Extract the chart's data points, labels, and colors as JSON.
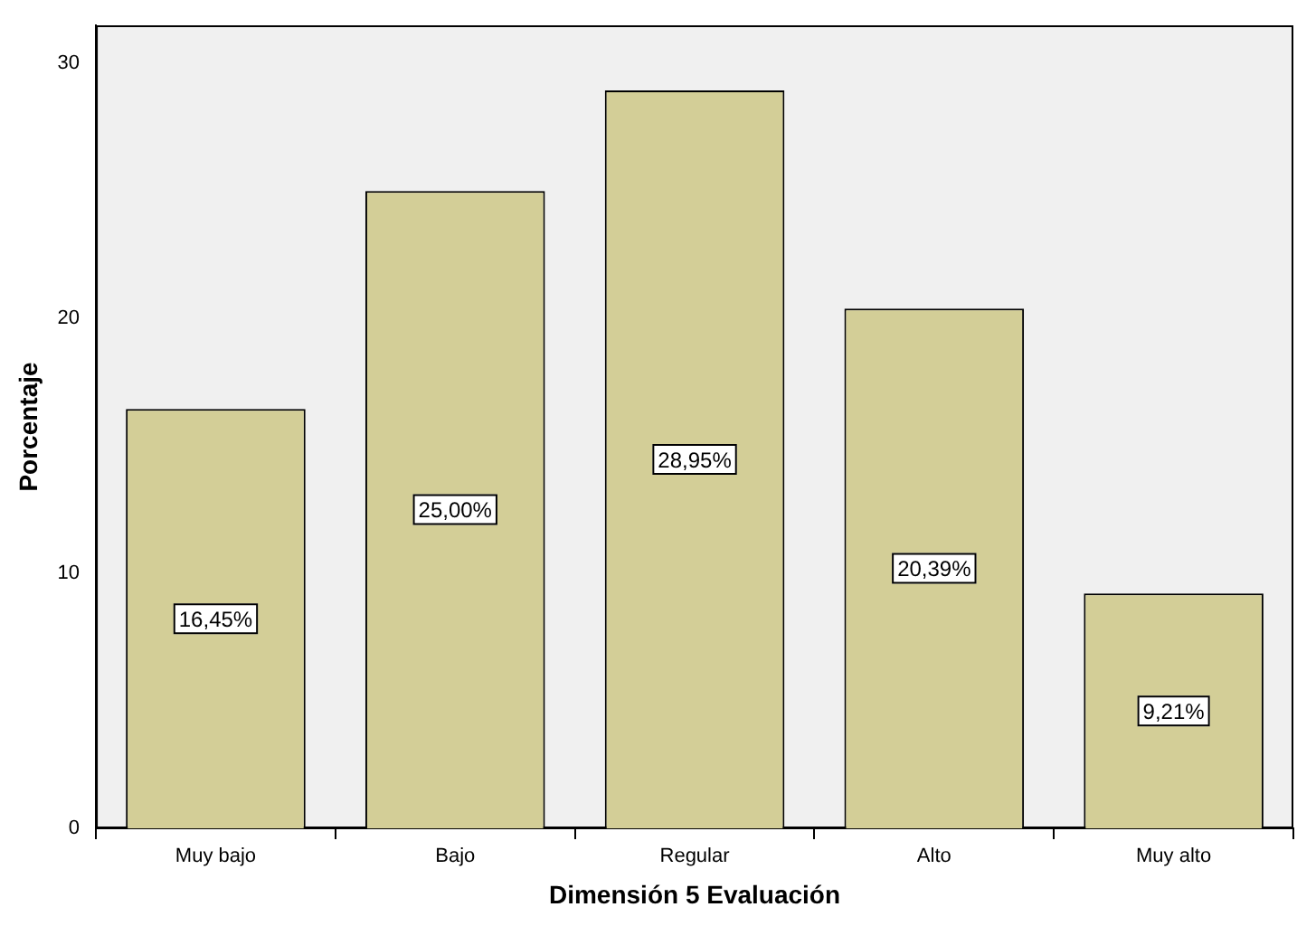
{
  "chart_data": {
    "type": "bar",
    "xlabel": "Dimensión 5 Evaluación",
    "ylabel": "Porcentaje",
    "categories": [
      "Muy bajo",
      "Bajo",
      "Regular",
      "Alto",
      "Muy alto"
    ],
    "values": [
      16.45,
      25.0,
      28.95,
      20.39,
      9.21
    ],
    "value_labels": [
      "16,45%",
      "25,00%",
      "28,95%",
      "20,39%",
      "9,21%"
    ],
    "color": "#d3ce97",
    "ylim": [
      0,
      31.5
    ],
    "yticks": [
      0,
      10,
      20,
      30
    ],
    "grid": false,
    "legend": false
  }
}
